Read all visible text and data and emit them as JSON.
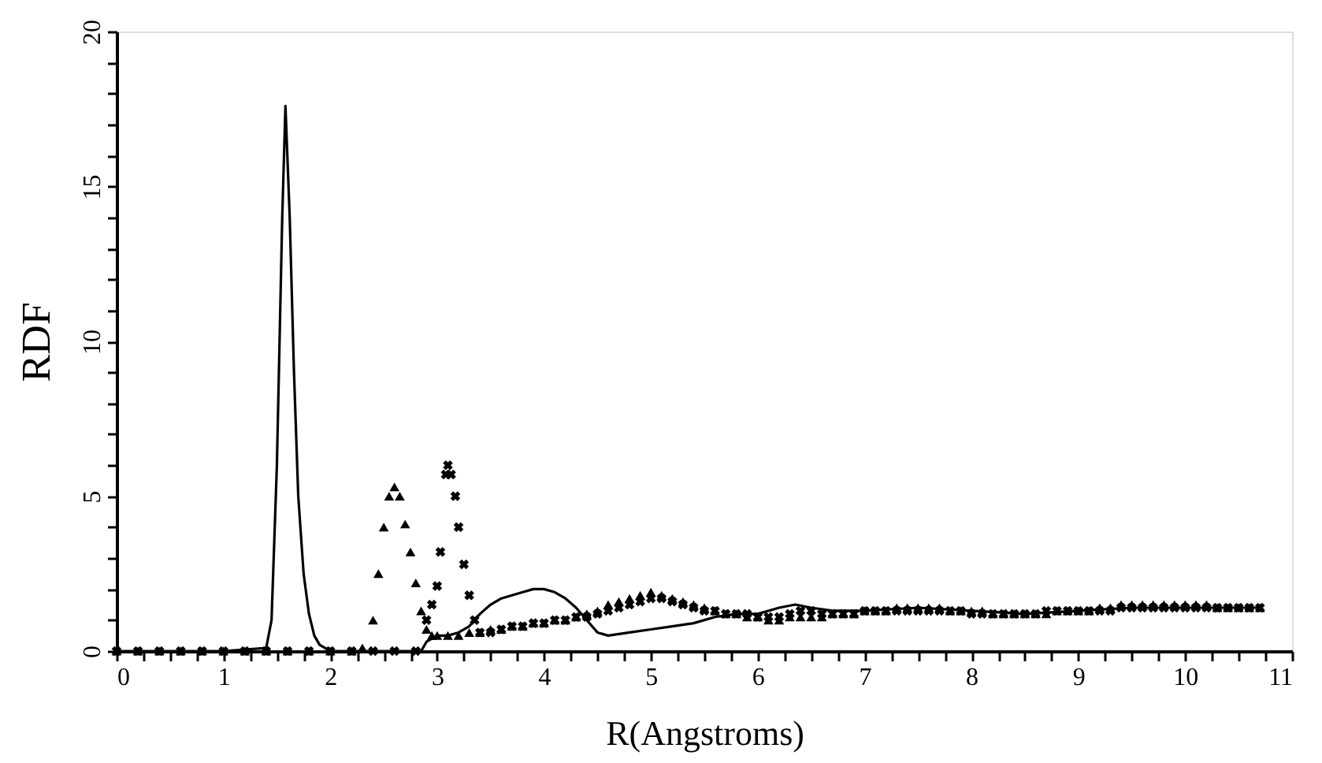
{
  "chart_data": {
    "type": "scatter",
    "xlabel": "R(Angstroms)",
    "ylabel": "RDF",
    "xlim": [
      0,
      11
    ],
    "ylim": [
      0,
      20
    ],
    "xticks": [
      0,
      {
        "value": 0.25,
        "label": null
      },
      {
        "value": 0.5,
        "label": null
      },
      {
        "value": 0.75,
        "label": null
      },
      1,
      {
        "value": 1.25,
        "label": null
      },
      {
        "value": 1.5,
        "label": null
      },
      {
        "value": 1.75,
        "label": null
      },
      2,
      {
        "value": 2.25,
        "label": null
      },
      {
        "value": 2.5,
        "label": null
      },
      {
        "value": 2.75,
        "label": null
      },
      3,
      {
        "value": 3.25,
        "label": null
      },
      {
        "value": 3.5,
        "label": null
      },
      {
        "value": 3.75,
        "label": null
      },
      4,
      {
        "value": 4.25,
        "label": null
      },
      {
        "value": 4.5,
        "label": null
      },
      {
        "value": 4.75,
        "label": null
      },
      5,
      {
        "value": 5.25,
        "label": null
      },
      {
        "value": 5.5,
        "label": null
      },
      {
        "value": 5.75,
        "label": null
      },
      6,
      {
        "value": 6.25,
        "label": null
      },
      {
        "value": 6.5,
        "label": null
      },
      {
        "value": 6.75,
        "label": null
      },
      7,
      {
        "value": 7.25,
        "label": null
      },
      {
        "value": 7.5,
        "label": null
      },
      {
        "value": 7.75,
        "label": null
      },
      8,
      {
        "value": 8.25,
        "label": null
      },
      {
        "value": 8.5,
        "label": null
      },
      {
        "value": 8.75,
        "label": null
      },
      9,
      {
        "value": 9.25,
        "label": null
      },
      {
        "value": 9.5,
        "label": null
      },
      {
        "value": 9.75,
        "label": null
      },
      10,
      {
        "value": 10.25,
        "label": null
      },
      {
        "value": 10.5,
        "label": null
      },
      {
        "value": 10.75,
        "label": null
      },
      11
    ],
    "yticks": [
      0,
      {
        "value": 1,
        "label": null
      },
      {
        "value": 2,
        "label": null
      },
      {
        "value": 3,
        "label": null
      },
      {
        "value": 4,
        "label": null
      },
      5,
      {
        "value": 6,
        "label": null
      },
      {
        "value": 7,
        "label": null
      },
      {
        "value": 8,
        "label": null
      },
      {
        "value": 9,
        "label": null
      },
      10,
      {
        "value": 11,
        "label": null
      },
      {
        "value": 12,
        "label": null
      },
      {
        "value": 13,
        "label": null
      },
      {
        "value": 14,
        "label": null
      },
      15,
      {
        "value": 16,
        "label": null
      },
      {
        "value": 17,
        "label": null
      },
      {
        "value": 18,
        "label": null
      },
      {
        "value": 19,
        "label": null
      },
      20
    ],
    "grid": false,
    "series": [
      {
        "type": "line",
        "color": "#000000",
        "marker": "none",
        "line_style": "solid",
        "x": [
          0,
          0.5,
          1.0,
          1.4,
          1.45,
          1.5,
          1.55,
          1.58,
          1.62,
          1.66,
          1.7,
          1.75,
          1.8,
          1.85,
          1.9,
          2.0,
          2.5,
          2.85,
          2.9,
          3.0,
          3.1,
          3.2,
          3.3,
          3.4,
          3.5,
          3.6,
          3.7,
          3.8,
          3.9,
          4.0,
          4.1,
          4.2,
          4.3,
          4.4,
          4.5,
          4.6,
          4.8,
          5.0,
          5.2,
          5.4,
          5.6,
          5.8,
          6.0,
          6.2,
          6.35,
          6.5,
          6.7,
          7.0,
          7.5,
          8.0,
          8.5,
          9.0,
          9.5,
          10.0,
          10.5,
          10.7
        ],
        "values": [
          0,
          0,
          0,
          0.1,
          1,
          6,
          14,
          17.6,
          14,
          9,
          5,
          2.5,
          1.2,
          0.5,
          0.2,
          0,
          0,
          0,
          0.3,
          0.5,
          0.5,
          0.6,
          0.8,
          1.2,
          1.5,
          1.7,
          1.8,
          1.9,
          2.0,
          2.0,
          1.9,
          1.7,
          1.4,
          1.0,
          0.6,
          0.5,
          0.6,
          0.7,
          0.8,
          0.9,
          1.1,
          1.2,
          1.2,
          1.4,
          1.5,
          1.4,
          1.3,
          1.3,
          1.4,
          1.3,
          1.2,
          1.3,
          1.4,
          1.4,
          1.4,
          1.4
        ]
      },
      {
        "color": "#000000",
        "marker": "triangle",
        "x": [
          0,
          0.2,
          0.4,
          0.6,
          0.8,
          1.0,
          1.2,
          1.4,
          1.6,
          1.8,
          2.0,
          2.2,
          2.3,
          2.4,
          2.45,
          2.5,
          2.55,
          2.6,
          2.65,
          2.7,
          2.75,
          2.8,
          2.85,
          2.9,
          2.95,
          3.0,
          3.1,
          3.2,
          3.3,
          3.4,
          3.5,
          3.6,
          3.7,
          3.8,
          3.9,
          4.0,
          4.1,
          4.2,
          4.3,
          4.4,
          4.5,
          4.6,
          4.7,
          4.8,
          4.9,
          5.0,
          5.1,
          5.2,
          5.3,
          5.4,
          5.5,
          5.6,
          5.7,
          5.8,
          5.9,
          6.0,
          6.1,
          6.2,
          6.3,
          6.4,
          6.5,
          6.6,
          6.7,
          6.8,
          6.9,
          7.0,
          7.1,
          7.2,
          7.3,
          7.4,
          7.5,
          7.6,
          7.7,
          7.8,
          7.9,
          8.0,
          8.1,
          8.2,
          8.3,
          8.4,
          8.5,
          8.6,
          8.7,
          8.8,
          8.9,
          9.0,
          9.1,
          9.2,
          9.3,
          9.4,
          9.5,
          9.6,
          9.7,
          9.8,
          9.9,
          10.0,
          10.1,
          10.2,
          10.3,
          10.4,
          10.5,
          10.6,
          10.7
        ],
        "values": [
          0,
          0,
          0,
          0,
          0,
          0,
          0,
          0,
          0,
          0,
          0,
          0,
          0.1,
          1.0,
          2.5,
          4.0,
          5.0,
          5.3,
          5.0,
          4.1,
          3.2,
          2.2,
          1.3,
          0.7,
          0.5,
          0.5,
          0.5,
          0.5,
          0.6,
          0.6,
          0.7,
          0.7,
          0.8,
          0.8,
          0.9,
          0.9,
          1.0,
          1.0,
          1.1,
          1.2,
          1.3,
          1.5,
          1.6,
          1.7,
          1.8,
          1.9,
          1.8,
          1.7,
          1.6,
          1.5,
          1.4,
          1.3,
          1.2,
          1.2,
          1.1,
          1.1,
          1.0,
          1.0,
          1.1,
          1.1,
          1.1,
          1.1,
          1.2,
          1.2,
          1.2,
          1.3,
          1.3,
          1.3,
          1.4,
          1.4,
          1.4,
          1.4,
          1.4,
          1.3,
          1.3,
          1.3,
          1.3,
          1.2,
          1.2,
          1.2,
          1.2,
          1.2,
          1.2,
          1.3,
          1.3,
          1.3,
          1.3,
          1.4,
          1.4,
          1.5,
          1.5,
          1.5,
          1.5,
          1.5,
          1.5,
          1.5,
          1.5,
          1.5,
          1.4,
          1.4,
          1.4,
          1.4,
          1.4
        ]
      },
      {
        "color": "#000000",
        "marker": "cross",
        "x": [
          0,
          0.2,
          0.4,
          0.6,
          0.8,
          1.0,
          1.2,
          1.4,
          1.6,
          1.8,
          2.0,
          2.2,
          2.4,
          2.6,
          2.8,
          2.9,
          2.95,
          3.0,
          3.03,
          3.08,
          3.1,
          3.13,
          3.17,
          3.2,
          3.25,
          3.3,
          3.35,
          3.4,
          3.5,
          3.6,
          3.7,
          3.8,
          3.9,
          4.0,
          4.1,
          4.2,
          4.3,
          4.4,
          4.5,
          4.6,
          4.7,
          4.8,
          4.9,
          5.0,
          5.1,
          5.2,
          5.3,
          5.4,
          5.5,
          5.6,
          5.7,
          5.8,
          5.9,
          6.0,
          6.1,
          6.2,
          6.3,
          6.4,
          6.5,
          6.6,
          6.7,
          6.8,
          6.9,
          7.0,
          7.1,
          7.2,
          7.3,
          7.4,
          7.5,
          7.6,
          7.7,
          7.8,
          7.9,
          8.0,
          8.1,
          8.2,
          8.3,
          8.4,
          8.5,
          8.6,
          8.7,
          8.8,
          8.9,
          9.0,
          9.1,
          9.2,
          9.3,
          9.4,
          9.5,
          9.6,
          9.7,
          9.8,
          9.9,
          10.0,
          10.1,
          10.2,
          10.3,
          10.4,
          10.5,
          10.6,
          10.7
        ],
        "values": [
          0,
          0,
          0,
          0,
          0,
          0,
          0,
          0,
          0,
          0,
          0,
          0,
          0,
          0,
          0,
          1.0,
          1.5,
          2.1,
          3.2,
          5.7,
          6.0,
          5.7,
          5.0,
          4.0,
          2.8,
          1.8,
          1.0,
          0.6,
          0.6,
          0.7,
          0.8,
          0.8,
          0.9,
          0.9,
          1.0,
          1.0,
          1.1,
          1.1,
          1.2,
          1.3,
          1.4,
          1.5,
          1.6,
          1.7,
          1.7,
          1.6,
          1.5,
          1.4,
          1.3,
          1.3,
          1.2,
          1.2,
          1.2,
          1.1,
          1.1,
          1.1,
          1.2,
          1.3,
          1.3,
          1.2,
          1.2,
          1.2,
          1.2,
          1.3,
          1.3,
          1.3,
          1.3,
          1.3,
          1.3,
          1.3,
          1.3,
          1.3,
          1.3,
          1.2,
          1.2,
          1.2,
          1.2,
          1.2,
          1.2,
          1.2,
          1.3,
          1.3,
          1.3,
          1.3,
          1.3,
          1.3,
          1.3,
          1.4,
          1.4,
          1.4,
          1.4,
          1.4,
          1.4,
          1.4,
          1.4,
          1.4,
          1.4,
          1.4,
          1.4,
          1.4,
          1.4
        ]
      }
    ]
  }
}
